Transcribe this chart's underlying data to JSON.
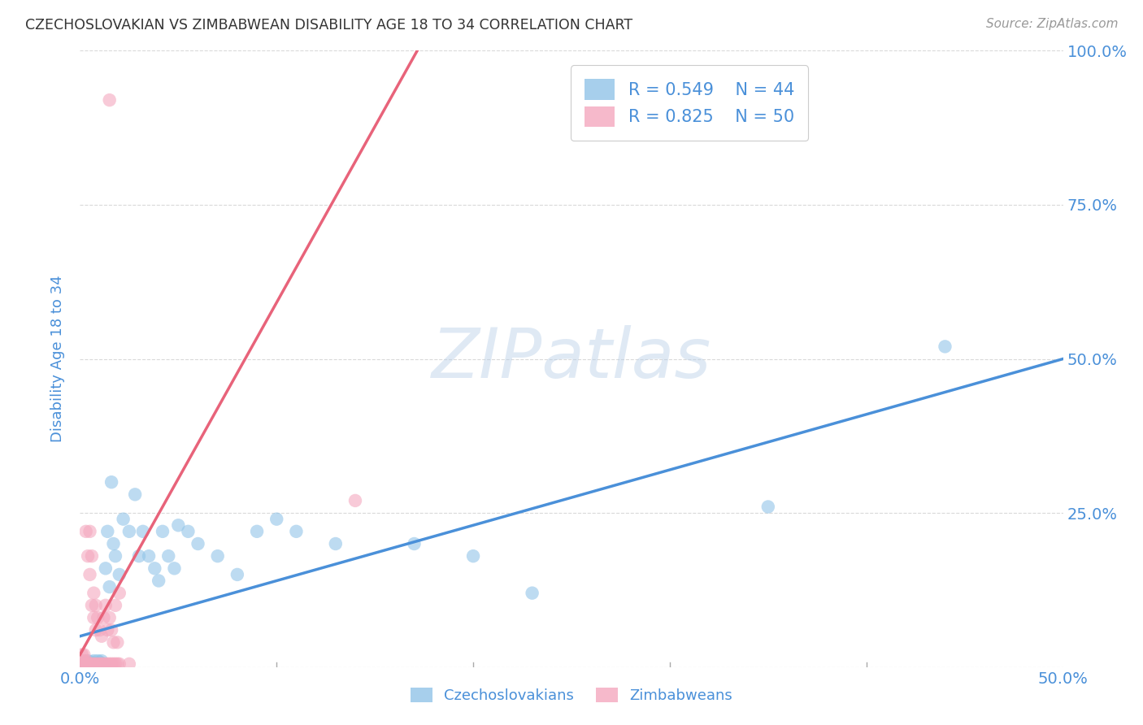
{
  "title": "CZECHOSLOVAKIAN VS ZIMBABWEAN DISABILITY AGE 18 TO 34 CORRELATION CHART",
  "source": "Source: ZipAtlas.com",
  "ylabel_label": "Disability Age 18 to 34",
  "legend_labels": [
    "Czechoslovakians",
    "Zimbabweans"
  ],
  "R_czech": 0.549,
  "N_czech": 44,
  "R_zimb": 0.825,
  "N_zimb": 50,
  "xlim": [
    0.0,
    0.5
  ],
  "ylim": [
    0.0,
    1.0
  ],
  "x_ticks": [
    0.0,
    0.1,
    0.2,
    0.3,
    0.4,
    0.5
  ],
  "x_tick_labels": [
    "0.0%",
    "",
    "",
    "",
    "",
    "50.0%"
  ],
  "y_ticks": [
    0.0,
    0.25,
    0.5,
    0.75,
    1.0
  ],
  "y_tick_labels": [
    "",
    "25.0%",
    "50.0%",
    "75.0%",
    "100.0%"
  ],
  "blue_color": "#91c4e8",
  "pink_color": "#f4a8be",
  "blue_line_color": "#4a90d9",
  "pink_line_color": "#e8637a",
  "text_color": "#4a90d9",
  "background_color": "#ffffff",
  "watermark_text": "ZIPatlas",
  "czech_points": [
    [
      0.001,
      0.005
    ],
    [
      0.002,
      0.008
    ],
    [
      0.003,
      0.005
    ],
    [
      0.004,
      0.01
    ],
    [
      0.005,
      0.005
    ],
    [
      0.006,
      0.008
    ],
    [
      0.007,
      0.01
    ],
    [
      0.008,
      0.005
    ],
    [
      0.009,
      0.01
    ],
    [
      0.01,
      0.008
    ],
    [
      0.011,
      0.01
    ],
    [
      0.012,
      0.005
    ],
    [
      0.013,
      0.16
    ],
    [
      0.014,
      0.22
    ],
    [
      0.015,
      0.13
    ],
    [
      0.016,
      0.3
    ],
    [
      0.017,
      0.2
    ],
    [
      0.018,
      0.18
    ],
    [
      0.02,
      0.15
    ],
    [
      0.022,
      0.24
    ],
    [
      0.025,
      0.22
    ],
    [
      0.028,
      0.28
    ],
    [
      0.03,
      0.18
    ],
    [
      0.032,
      0.22
    ],
    [
      0.035,
      0.18
    ],
    [
      0.038,
      0.16
    ],
    [
      0.04,
      0.14
    ],
    [
      0.042,
      0.22
    ],
    [
      0.045,
      0.18
    ],
    [
      0.048,
      0.16
    ],
    [
      0.05,
      0.23
    ],
    [
      0.055,
      0.22
    ],
    [
      0.06,
      0.2
    ],
    [
      0.07,
      0.18
    ],
    [
      0.08,
      0.15
    ],
    [
      0.09,
      0.22
    ],
    [
      0.1,
      0.24
    ],
    [
      0.11,
      0.22
    ],
    [
      0.13,
      0.2
    ],
    [
      0.17,
      0.2
    ],
    [
      0.2,
      0.18
    ],
    [
      0.23,
      0.12
    ],
    [
      0.35,
      0.26
    ],
    [
      0.44,
      0.52
    ]
  ],
  "zimb_points": [
    [
      0.001,
      0.005
    ],
    [
      0.001,
      0.01
    ],
    [
      0.001,
      0.02
    ],
    [
      0.002,
      0.005
    ],
    [
      0.002,
      0.01
    ],
    [
      0.002,
      0.02
    ],
    [
      0.003,
      0.005
    ],
    [
      0.003,
      0.01
    ],
    [
      0.003,
      0.22
    ],
    [
      0.004,
      0.005
    ],
    [
      0.004,
      0.18
    ],
    [
      0.005,
      0.005
    ],
    [
      0.005,
      0.22
    ],
    [
      0.005,
      0.15
    ],
    [
      0.006,
      0.005
    ],
    [
      0.006,
      0.18
    ],
    [
      0.006,
      0.1
    ],
    [
      0.007,
      0.005
    ],
    [
      0.007,
      0.12
    ],
    [
      0.007,
      0.08
    ],
    [
      0.008,
      0.005
    ],
    [
      0.008,
      0.1
    ],
    [
      0.008,
      0.06
    ],
    [
      0.009,
      0.005
    ],
    [
      0.009,
      0.08
    ],
    [
      0.01,
      0.005
    ],
    [
      0.01,
      0.06
    ],
    [
      0.011,
      0.005
    ],
    [
      0.011,
      0.05
    ],
    [
      0.012,
      0.005
    ],
    [
      0.012,
      0.08
    ],
    [
      0.013,
      0.005
    ],
    [
      0.013,
      0.1
    ],
    [
      0.014,
      0.005
    ],
    [
      0.014,
      0.06
    ],
    [
      0.015,
      0.005
    ],
    [
      0.015,
      0.08
    ],
    [
      0.016,
      0.005
    ],
    [
      0.016,
      0.06
    ],
    [
      0.017,
      0.005
    ],
    [
      0.017,
      0.04
    ],
    [
      0.018,
      0.005
    ],
    [
      0.018,
      0.1
    ],
    [
      0.019,
      0.005
    ],
    [
      0.019,
      0.04
    ],
    [
      0.02,
      0.005
    ],
    [
      0.02,
      0.12
    ],
    [
      0.025,
      0.005
    ],
    [
      0.14,
      0.27
    ],
    [
      0.015,
      0.92
    ]
  ]
}
